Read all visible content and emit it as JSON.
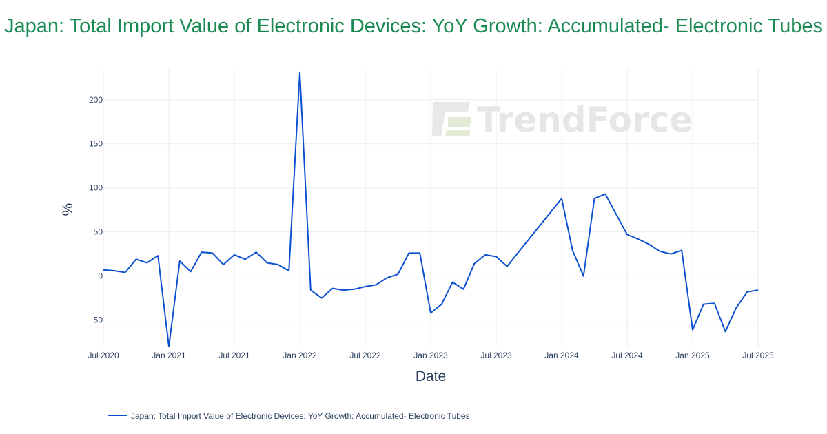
{
  "colors": {
    "title": "#1a8a52",
    "series": "#0b4fd1",
    "grid": "#ebebeb",
    "text": "#2a3f5f"
  },
  "watermark": {
    "text": "TrendForce"
  },
  "chart_data": {
    "type": "line",
    "title": "Japan: Total Import Value of Electronic Devices: YoY Growth: Accumulated- Electronic Tubes",
    "xlabel": "Date",
    "ylabel": "%",
    "xlim": [
      "2020-07",
      "2025-07"
    ],
    "ylim": [
      -80,
      235
    ],
    "grid": true,
    "legend_position": "bottom-left",
    "x_ticks": [
      {
        "date": "2020-07",
        "label": "Jul 2020"
      },
      {
        "date": "2021-01",
        "label": "Jan 2021"
      },
      {
        "date": "2021-07",
        "label": "Jul 2021"
      },
      {
        "date": "2022-01",
        "label": "Jan 2022"
      },
      {
        "date": "2022-07",
        "label": "Jul 2022"
      },
      {
        "date": "2023-01",
        "label": "Jan 2023"
      },
      {
        "date": "2023-07",
        "label": "Jul 2023"
      },
      {
        "date": "2024-01",
        "label": "Jan 2024"
      },
      {
        "date": "2024-07",
        "label": "Jul 2024"
      },
      {
        "date": "2025-01",
        "label": "Jan 2025"
      },
      {
        "date": "2025-07",
        "label": "Jul 2025"
      }
    ],
    "y_ticks": [
      {
        "value": 200,
        "label": "200"
      },
      {
        "value": 150,
        "label": "150"
      },
      {
        "value": 100,
        "label": "100"
      },
      {
        "value": 50,
        "label": "50"
      },
      {
        "value": 0,
        "label": "0"
      },
      {
        "value": -50,
        "label": "−50"
      }
    ],
    "series": [
      {
        "name": "Japan: Total Import Value of Electronic Devices: YoY Growth: Accumulated- Electronic Tubes",
        "points": [
          [
            "2020-07",
            7
          ],
          [
            "2020-08",
            6
          ],
          [
            "2020-09",
            4
          ],
          [
            "2020-10",
            19
          ],
          [
            "2020-11",
            15
          ],
          [
            "2020-12",
            23
          ],
          [
            "2021-01",
            -80
          ],
          [
            "2021-02",
            17
          ],
          [
            "2021-03",
            5
          ],
          [
            "2021-04",
            27
          ],
          [
            "2021-05",
            26
          ],
          [
            "2021-06",
            13
          ],
          [
            "2021-07",
            24
          ],
          [
            "2021-08",
            19
          ],
          [
            "2021-09",
            27
          ],
          [
            "2021-10",
            15
          ],
          [
            "2021-11",
            13
          ],
          [
            "2021-12",
            6
          ],
          [
            "2022-01",
            231
          ],
          [
            "2022-02",
            -16
          ],
          [
            "2022-03",
            -25
          ],
          [
            "2022-04",
            -14
          ],
          [
            "2022-05",
            -16
          ],
          [
            "2022-06",
            -15
          ],
          [
            "2022-07",
            -12
          ],
          [
            "2022-08",
            -10
          ],
          [
            "2022-09",
            -2
          ],
          [
            "2022-10",
            2
          ],
          [
            "2022-11",
            26
          ],
          [
            "2022-12",
            26
          ],
          [
            "2023-01",
            -42
          ],
          [
            "2023-02",
            -32
          ],
          [
            "2023-03",
            -7
          ],
          [
            "2023-04",
            -15
          ],
          [
            "2023-05",
            14
          ],
          [
            "2023-06",
            24
          ],
          [
            "2023-07",
            22
          ],
          [
            "2023-08",
            11
          ],
          [
            "2024-01",
            88
          ],
          [
            "2024-02",
            29
          ],
          [
            "2024-03",
            0
          ],
          [
            "2024-04",
            88
          ],
          [
            "2024-05",
            93
          ],
          [
            "2024-07",
            47
          ],
          [
            "2024-08",
            42
          ],
          [
            "2024-09",
            36
          ],
          [
            "2024-10",
            28
          ],
          [
            "2024-11",
            25
          ],
          [
            "2024-12",
            29
          ],
          [
            "2025-01",
            -61
          ],
          [
            "2025-02",
            -32
          ],
          [
            "2025-03",
            -31
          ],
          [
            "2025-04",
            -63
          ],
          [
            "2025-05",
            -36
          ],
          [
            "2025-06",
            -18
          ],
          [
            "2025-07",
            -16
          ]
        ]
      }
    ]
  }
}
